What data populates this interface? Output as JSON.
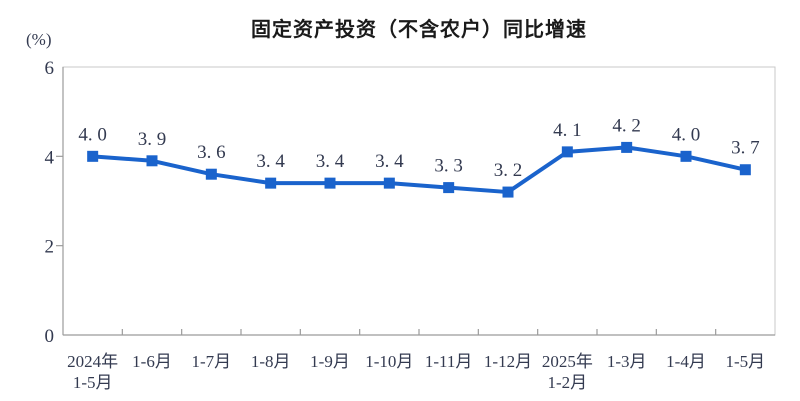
{
  "title": "固定资产投资（不含农户）同比增速",
  "chart_data": {
    "type": "line",
    "title": "固定资产投资（不含农户）同比增速",
    "unit_label": "(%)",
    "series_name": "固定资产投资（不含农户）同比增速",
    "categories": [
      "2024年1-5月",
      "1-6月",
      "1-7月",
      "1-8月",
      "1-9月",
      "1-10月",
      "1-11月",
      "1-12月",
      "2025年1-2月",
      "1-3月",
      "1-4月",
      "1-5月"
    ],
    "category_lines": [
      [
        "2024年",
        "1-5月"
      ],
      [
        "1-6月"
      ],
      [
        "1-7月"
      ],
      [
        "1-8月"
      ],
      [
        "1-9月"
      ],
      [
        "1-10月"
      ],
      [
        "1-11月"
      ],
      [
        "1-12月"
      ],
      [
        "2025年",
        "1-2月"
      ],
      [
        "1-3月"
      ],
      [
        "1-4月"
      ],
      [
        "1-5月"
      ]
    ],
    "values": [
      4.0,
      3.9,
      3.6,
      3.4,
      3.4,
      3.4,
      3.3,
      3.2,
      4.1,
      4.2,
      4.0,
      3.7
    ],
    "point_labels": [
      "4. 0",
      "3. 9",
      "3. 6",
      "3. 4",
      "3. 4",
      "3. 4",
      "3. 3",
      "3. 2",
      "4. 1",
      "4. 2",
      "4. 0",
      "3. 7"
    ],
    "yticks": [
      0,
      2,
      4,
      6
    ],
    "ylim": [
      0,
      6
    ],
    "grid": false,
    "legend": "none",
    "colors": {
      "line": "#1a63cc",
      "marker": "#1a63cc",
      "label": "#333a50",
      "title": "#1a1a1a",
      "axis_dark": "#9b9b9b",
      "frame_light": "#c9c9c9"
    }
  }
}
